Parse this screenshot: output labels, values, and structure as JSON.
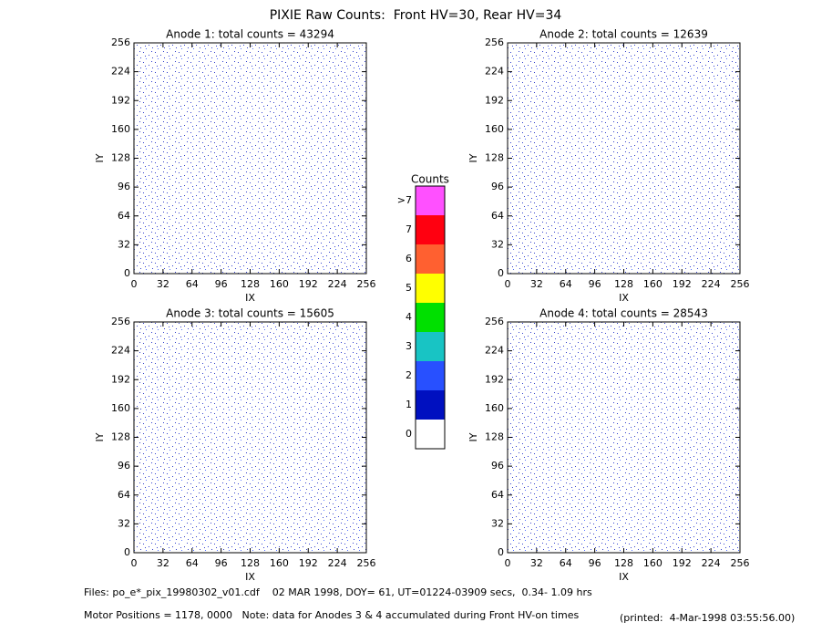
{
  "title": "PIXIE Raw Counts:  Front HV=30, Rear HV=34",
  "chart_data": [
    {
      "type": "heatmap",
      "title": "Anode 1: total counts = 43294",
      "xlabel": "IX",
      "ylabel": "IY",
      "xlim": [
        0,
        256
      ],
      "ylim": [
        0,
        256
      ],
      "xticks": [
        0,
        32,
        64,
        96,
        128,
        160,
        192,
        224,
        256
      ],
      "yticks": [
        0,
        32,
        64,
        96,
        128,
        160,
        192,
        224,
        256
      ]
    },
    {
      "type": "heatmap",
      "title": "Anode 2: total counts = 12639",
      "xlabel": "IX",
      "ylabel": "IY",
      "xlim": [
        0,
        256
      ],
      "ylim": [
        0,
        256
      ],
      "xticks": [
        0,
        32,
        64,
        96,
        128,
        160,
        192,
        224,
        256
      ],
      "yticks": [
        0,
        32,
        64,
        96,
        128,
        160,
        192,
        224,
        256
      ]
    },
    {
      "type": "heatmap",
      "title": "Anode 3: total counts = 15605",
      "xlabel": "IX",
      "ylabel": "IY",
      "xlim": [
        0,
        256
      ],
      "ylim": [
        0,
        256
      ],
      "xticks": [
        0,
        32,
        64,
        96,
        128,
        160,
        192,
        224,
        256
      ],
      "yticks": [
        0,
        32,
        64,
        96,
        128,
        160,
        192,
        224,
        256
      ]
    },
    {
      "type": "heatmap",
      "title": "Anode 4: total counts = 28543",
      "xlabel": "IX",
      "ylabel": "IY",
      "xlim": [
        0,
        256
      ],
      "ylim": [
        0,
        256
      ],
      "xticks": [
        0,
        32,
        64,
        96,
        128,
        160,
        192,
        224,
        256
      ],
      "yticks": [
        0,
        32,
        64,
        96,
        128,
        160,
        192,
        224,
        256
      ]
    }
  ],
  "colorbar": {
    "title": "Counts",
    "levels": [
      {
        "label": "0",
        "color": "#ffffff"
      },
      {
        "label": "1",
        "color": "#0010c0"
      },
      {
        "label": "2",
        "color": "#2850ff"
      },
      {
        "label": "3",
        "color": "#18c4c4"
      },
      {
        "label": "4",
        "color": "#00e000"
      },
      {
        "label": "5",
        "color": "#ffff00"
      },
      {
        "label": "6",
        "color": "#ff6030"
      },
      {
        "label": "7",
        "color": "#ff0010"
      },
      {
        "label": ">7",
        "color": "#ff50ff"
      }
    ]
  },
  "footer": {
    "files": "Files: po_e*_pix_19980302_v01.cdf    02 MAR 1998, DOY= 61, UT=01224-03909 secs,  0.34- 1.09 hrs",
    "motor": "Motor Positions = 1178, 0000   Note: data for Anodes 3 & 4 accumulated during Front HV-on times",
    "printed": "(printed:  4-Mar-1998 03:55:56.00)"
  }
}
